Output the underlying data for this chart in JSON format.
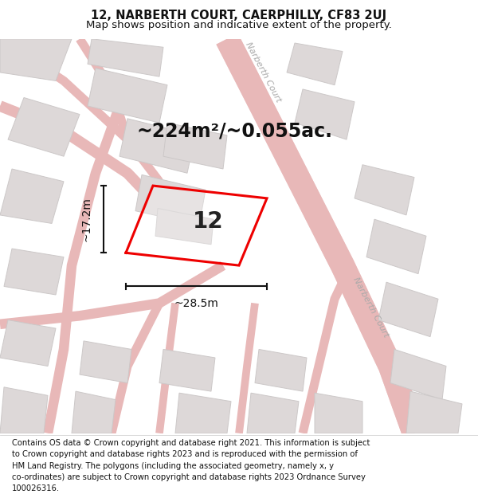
{
  "title_line1": "12, NARBERTH COURT, CAERPHILLY, CF83 2UJ",
  "title_line2": "Map shows position and indicative extent of the property.",
  "area_text": "~224m²/~0.055ac.",
  "property_number": "12",
  "dim_width": "~28.5m",
  "dim_height": "~17.2m",
  "footer_text": "Contains OS data © Crown copyright and database right 2021. This information is subject to Crown copyright and database rights 2023 and is reproduced with the permission of HM Land Registry. The polygons (including the associated geometry, namely x, y co-ordinates) are subject to Crown copyright and database rights 2023 Ordnance Survey 100026316.",
  "bg_color": "#ffffff",
  "map_bg_color": "#f2eeee",
  "road_color": "#e8b8b8",
  "road_fill": "#f0d0d0",
  "building_fill": "#ddd8d8",
  "building_edge": "#ccc8c8",
  "property_outline_color": "#ee0000",
  "title_fontsize": 10.5,
  "subtitle_fontsize": 9.5,
  "area_fontsize": 17,
  "number_fontsize": 20,
  "dim_fontsize": 10,
  "footer_fontsize": 7.2,
  "street_label_fontsize": 8,
  "street_label_color": "#aaaaaa"
}
